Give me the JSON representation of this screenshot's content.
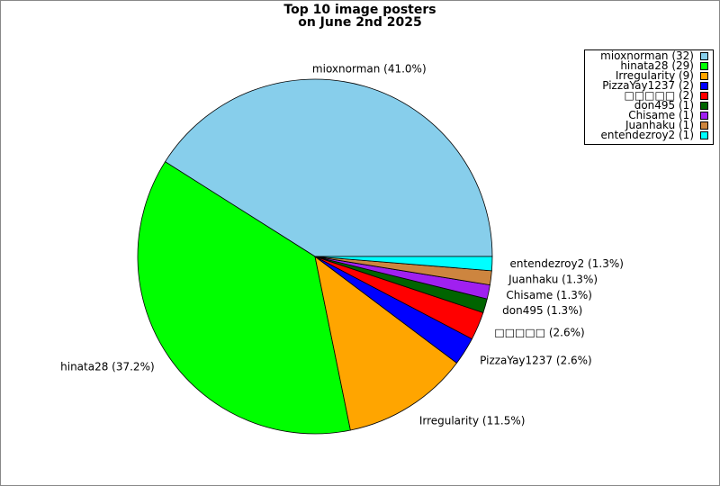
{
  "chart_data": {
    "type": "pie",
    "title": "Top 10 image posters",
    "subtitle": "on June 2nd 2025",
    "values": [
      32,
      29,
      9,
      2,
      2,
      1,
      1,
      1,
      1
    ],
    "value_labels": [
      "mioxnorman (41.0%)",
      "hinata28 (37.2%)",
      "Irregularity (11.5%)",
      "PizzaYay1237 (2.6%)",
      "□□□□□ (2.6%)",
      "don495 (1.3%)",
      "Chisame (1.3%)",
      "Juanhaku (1.3%)",
      "entendezroy2 (1.3%)"
    ],
    "legend": [
      "mioxnorman (32)",
      "hinata28 (29)",
      "Irregularity (9)",
      "PizzaYay1237 (2)",
      "□□□□□ (2)",
      "don495 (1)",
      "Chisame (1)",
      "Juanhaku (1)",
      "entendezroy2 (1)"
    ],
    "colors": [
      "#87ceeb",
      "#00ff00",
      "#ffa500",
      "#0000ff",
      "#ff0000",
      "#006400",
      "#a020f0",
      "#cd853f",
      "#00ffff"
    ],
    "legend_position": "upper right"
  }
}
